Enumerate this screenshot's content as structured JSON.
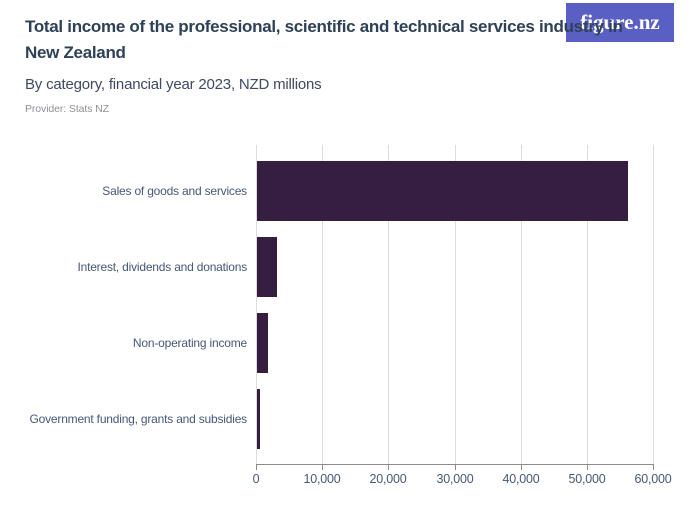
{
  "logo": {
    "text": "figure.nz",
    "bg_color": "#5a5fc4"
  },
  "header": {
    "title": "Total income of the professional, scientific and technical services industry in New Zealand",
    "subtitle": "By category, financial year 2023, NZD millions",
    "provider": "Provider: Stats NZ"
  },
  "chart_data": {
    "type": "bar",
    "orientation": "horizontal",
    "title": "Total income of the professional, scientific and technical services industry in New Zealand",
    "subtitle": "By category, financial year 2023, NZD millions",
    "categories": [
      "Sales of goods and services",
      "Interest, dividends and donations",
      "Non-operating income",
      "Government funding, grants and subsidies"
    ],
    "values": [
      56000,
      3000,
      1600,
      450
    ],
    "unit": "NZD millions",
    "xlim": [
      0,
      60000
    ],
    "xticks": [
      0,
      10000,
      20000,
      30000,
      40000,
      50000,
      60000
    ],
    "xtick_labels": [
      "0",
      "10,000",
      "20,000",
      "30,000",
      "40,000",
      "50,000",
      "60,000"
    ],
    "grid": "vertical",
    "legend": "none",
    "bar_color": "#351e3f",
    "grid_color": "#dcdcdc",
    "axis_color": "#8c8c8c",
    "label_color": "#475877"
  }
}
